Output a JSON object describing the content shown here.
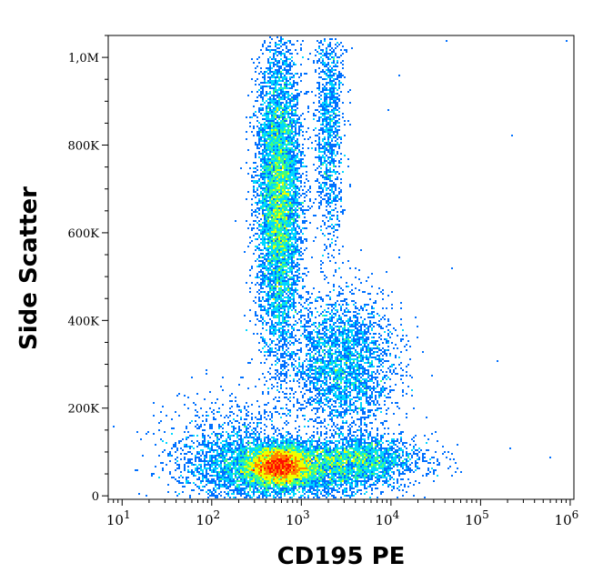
{
  "chart_data": {
    "type": "scatter",
    "subtype": "flow-cytometry-density-dot-plot",
    "xlabel": "CD195 PE",
    "ylabel": "Side Scatter",
    "x_scale": "log",
    "xlim": [
      7,
      1100000
    ],
    "ylim": [
      -8000,
      1050000
    ],
    "x_ticks": [
      {
        "value": 10,
        "base": "10",
        "exp": "1"
      },
      {
        "value": 100,
        "base": "10",
        "exp": "2"
      },
      {
        "value": 1000,
        "base": "10",
        "exp": "3"
      },
      {
        "value": 10000,
        "base": "10",
        "exp": "4"
      },
      {
        "value": 100000,
        "base": "10",
        "exp": "5"
      },
      {
        "value": 1000000,
        "base": "10",
        "exp": "6"
      }
    ],
    "y_ticks": [
      {
        "value": 0,
        "label": "0"
      },
      {
        "value": 200000,
        "label": "200K"
      },
      {
        "value": 400000,
        "label": "400K"
      },
      {
        "value": 600000,
        "label": "600K"
      },
      {
        "value": 800000,
        "label": "800K"
      },
      {
        "value": 1000000,
        "label": "1,0M"
      }
    ],
    "populations": [
      {
        "center_x": 550,
        "center_y": 70000,
        "spread_log_x": 0.18,
        "spread_y": 22000,
        "weight": 5500
      },
      {
        "center_x": 900,
        "center_y": 60000,
        "spread_log_x": 0.55,
        "spread_y": 35000,
        "weight": 3000
      },
      {
        "center_x": 4000,
        "center_y": 85000,
        "spread_log_x": 0.35,
        "spread_y": 25000,
        "weight": 2000
      },
      {
        "center_x": 2800,
        "center_y": 300000,
        "spread_log_x": 0.3,
        "spread_y": 80000,
        "weight": 3000
      },
      {
        "center_x": 550,
        "center_y": 680000,
        "spread_log_x": 0.12,
        "spread_y": 170000,
        "weight": 7000
      },
      {
        "center_x": 180,
        "center_y": 90000,
        "spread_log_x": 0.35,
        "spread_y": 60000,
        "weight": 1500
      },
      {
        "center_x": 2000,
        "center_y": 850000,
        "spread_log_x": 0.08,
        "spread_y": 150000,
        "weight": 1200
      }
    ],
    "outliers": [
      [
        2200,
        850000
      ],
      [
        9000,
        880000
      ],
      [
        220000,
        825000
      ],
      [
        48000,
        520000
      ],
      [
        150000,
        310000
      ],
      [
        590000,
        90000
      ],
      [
        210000,
        110000
      ],
      [
        12000,
        960000
      ],
      [
        40,
        230000
      ],
      [
        25,
        150000
      ],
      [
        900000,
        1040000
      ],
      [
        40000,
        1040000
      ]
    ],
    "colorscale": [
      "#0000d0",
      "#0070ff",
      "#00d8ff",
      "#40ff80",
      "#f0ff00",
      "#ff8000",
      "#ff1000"
    ],
    "grid": false,
    "legend": "none"
  }
}
